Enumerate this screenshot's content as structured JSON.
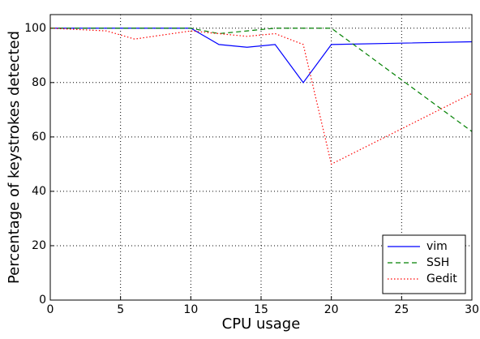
{
  "chart_data": {
    "type": "line",
    "x_label": "CPU usage",
    "y_label": "Percentage of keystrokes detected",
    "x": [
      0,
      2,
      4,
      6,
      8,
      10,
      12,
      14,
      16,
      18,
      20,
      25,
      30
    ],
    "series": [
      {
        "name": "vim",
        "color": "#0000ff",
        "dash": "solid",
        "values": [
          100,
          100,
          100,
          100,
          100,
          100,
          94,
          93,
          94,
          80,
          94,
          94.5,
          95
        ]
      },
      {
        "name": "SSH",
        "color": "#008000",
        "dash": "dashed",
        "values": [
          100,
          100,
          100,
          100,
          100,
          100,
          98,
          99,
          100,
          100,
          100,
          81,
          62
        ]
      },
      {
        "name": "Gedit",
        "color": "#ff0000",
        "dash": "dotted",
        "values": [
          100,
          99.5,
          99,
          96,
          97.5,
          99,
          98,
          97,
          98,
          94,
          50,
          63,
          76
        ]
      }
    ],
    "xlim": [
      0,
      30
    ],
    "xticks": [
      0,
      5,
      10,
      15,
      20,
      25,
      30
    ],
    "ylim": [
      0,
      105
    ],
    "yticks": [
      0,
      20,
      40,
      60,
      80,
      100
    ],
    "grid": true,
    "legend": "lower right"
  }
}
